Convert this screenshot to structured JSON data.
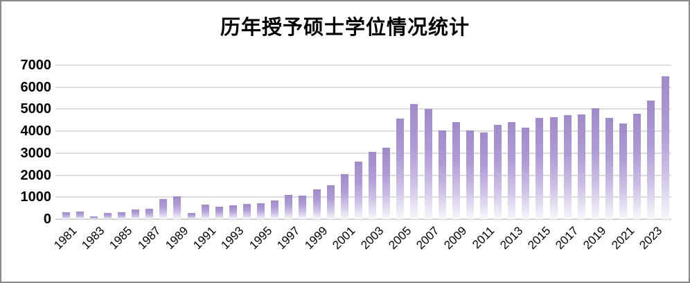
{
  "title": "历年授予硕士学位情况统计",
  "colors": {
    "bar_top": "#a18ac9",
    "bar_mid": "#af9cd5",
    "bar_fade": "#f8f7fb",
    "gridline": "#dcdcdc",
    "baseline": "#d2d2d2",
    "border": "#8a8a8a",
    "text": "#000000",
    "background": "#ffffff"
  },
  "chart_data": {
    "type": "bar",
    "title": "历年授予硕士学位情况统计",
    "xlabel": "",
    "ylabel": "",
    "ylim": [
      0,
      7000
    ],
    "ytick_step": 1000,
    "ytick_labels": [
      "0",
      "1000",
      "2000",
      "3000",
      "4000",
      "5000",
      "6000",
      "7000"
    ],
    "grid": true,
    "legend": false,
    "xtick_label_every": 2,
    "xtick_labels_shown": [
      "1981",
      "1983",
      "1985",
      "1987",
      "1989",
      "1991",
      "1993",
      "1995",
      "1997",
      "1999",
      "2001",
      "2003",
      "2005",
      "2007",
      "2009",
      "2011",
      "2013",
      "2015",
      "2017",
      "2019",
      "2021",
      "2023"
    ],
    "categories": [
      1981,
      1982,
      1983,
      1984,
      1985,
      1986,
      1987,
      1988,
      1989,
      1990,
      1991,
      1992,
      1993,
      1994,
      1995,
      1996,
      1997,
      1998,
      1999,
      2000,
      2001,
      2002,
      2003,
      2004,
      2005,
      2006,
      2007,
      2008,
      2009,
      2010,
      2011,
      2012,
      2013,
      2014,
      2015,
      2016,
      2017,
      2018,
      2019,
      2020,
      2021,
      2022,
      2023,
      2024
    ],
    "values": [
      310,
      340,
      140,
      270,
      310,
      440,
      470,
      900,
      1050,
      270,
      650,
      560,
      620,
      690,
      740,
      850,
      1100,
      1080,
      1370,
      1560,
      2050,
      2630,
      3050,
      3260,
      4580,
      5230,
      5000,
      4050,
      4400,
      4030,
      3930,
      4280,
      4410,
      4160,
      4590,
      4620,
      4740,
      4760,
      5040,
      4610,
      4340,
      4790,
      5390,
      6500
    ]
  }
}
